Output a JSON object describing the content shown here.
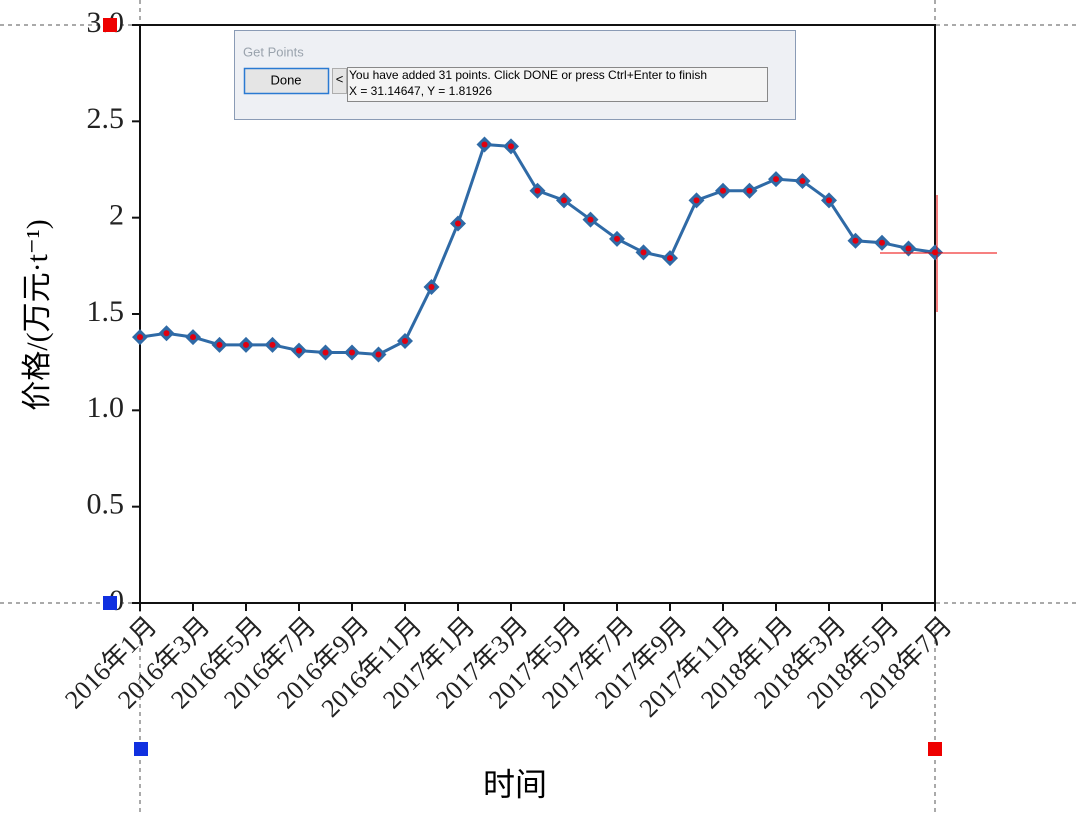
{
  "chart_data": {
    "type": "line",
    "x_label": "时间",
    "y_label": "价格/(万元·t⁻¹)",
    "categories": [
      "2016年1月",
      null,
      "2016年3月",
      null,
      "2016年5月",
      null,
      "2016年7月",
      null,
      "2016年9月",
      null,
      "2016年11月",
      null,
      "2017年1月",
      null,
      "2017年3月",
      null,
      "2017年5月",
      null,
      "2017年7月",
      null,
      "2017年9月",
      null,
      "2017年11月",
      null,
      "2018年1月",
      null,
      "2018年3月",
      null,
      "2018年5月",
      null,
      "2018年7月"
    ],
    "series": [
      {
        "color": "#2f6aa6",
        "values": [
          1.38,
          1.4,
          1.38,
          1.34,
          1.34,
          1.34,
          1.31,
          1.3,
          1.3,
          1.29,
          1.36,
          1.64,
          1.97,
          2.38,
          2.37,
          2.14,
          2.09,
          1.99,
          1.89,
          1.82,
          1.79,
          2.09,
          2.14,
          2.14,
          2.2,
          2.19,
          2.09,
          1.88,
          1.87,
          1.84,
          1.82
        ]
      }
    ],
    "ylim": [
      0,
      3
    ],
    "yticks": [
      0,
      0.5,
      {
        "value": 1,
        "label": "1.0"
      },
      1.5,
      2,
      2.5,
      {
        "value": 3,
        "label": "3.0"
      }
    ]
  },
  "dialog": {
    "title": "Get Points",
    "done_button": "Done",
    "back_button": "<",
    "message": "You have added 31 points. Click DONE or press Ctrl+Enter to finish",
    "coordinates": "X = 31.14647, Y = 1.81926"
  }
}
